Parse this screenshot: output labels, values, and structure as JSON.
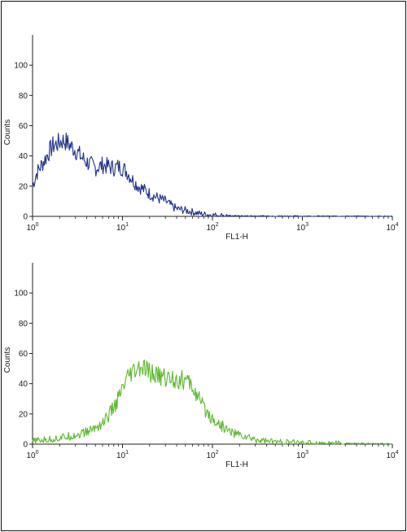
{
  "chart_data": [
    {
      "type": "line",
      "title": "",
      "xlabel": "FL1-H",
      "ylabel": "Counts",
      "x_scale": "log",
      "xlim": [
        1,
        10000
      ],
      "ylim": [
        0,
        120
      ],
      "x_ticks": [
        1,
        10,
        100,
        1000,
        10000
      ],
      "x_tick_labels": [
        {
          "base": "10",
          "exp": "0"
        },
        {
          "base": "10",
          "exp": "1"
        },
        {
          "base": "10",
          "exp": "2"
        },
        {
          "base": "10",
          "exp": "3"
        },
        {
          "base": "10",
          "exp": "4"
        }
      ],
      "y_ticks": [
        0,
        20,
        40,
        60,
        80,
        100
      ],
      "y_tick_labels": [
        "0",
        "20",
        "40",
        "60",
        "80",
        "100"
      ],
      "grid": false,
      "color": "#1e2f8a",
      "series": [
        {
          "x": [
            1.0,
            1.1,
            1.2,
            1.35,
            1.5,
            1.7,
            1.9,
            2.1,
            2.3,
            2.6,
            3.0,
            3.5,
            4.0,
            4.5,
            5.0,
            5.5,
            6.0,
            7.0,
            8.0,
            9.0,
            10.0,
            11.0,
            12.0,
            13.0,
            15.0,
            18.0,
            20.0,
            25.0,
            30.0,
            35.0,
            40.0,
            50.0,
            60.0,
            70.0,
            80.0,
            100.0,
            150.0,
            200.0,
            500.0,
            1000.0,
            10000.0
          ],
          "y": [
            20,
            28,
            32,
            37,
            42,
            47,
            48,
            50,
            50,
            47,
            44,
            39,
            36,
            34,
            32,
            33,
            34,
            33,
            32,
            33,
            32,
            30,
            27,
            24,
            20,
            17,
            15,
            12,
            10,
            7,
            5,
            4,
            3,
            2,
            1.5,
            1,
            0.5,
            0.3,
            0.2,
            0.1,
            0
          ]
        }
      ]
    },
    {
      "type": "line",
      "title": "",
      "xlabel": "FL1-H",
      "ylabel": "Counts",
      "x_scale": "log",
      "xlim": [
        1,
        10000
      ],
      "ylim": [
        0,
        120
      ],
      "x_ticks": [
        1,
        10,
        100,
        1000,
        10000
      ],
      "x_tick_labels": [
        {
          "base": "10",
          "exp": "0"
        },
        {
          "base": "10",
          "exp": "1"
        },
        {
          "base": "10",
          "exp": "2"
        },
        {
          "base": "10",
          "exp": "3"
        },
        {
          "base": "10",
          "exp": "4"
        }
      ],
      "y_ticks": [
        0,
        20,
        40,
        60,
        80,
        100
      ],
      "y_tick_labels": [
        "0",
        "20",
        "40",
        "60",
        "80",
        "100"
      ],
      "grid": false,
      "color": "#5cb82e",
      "series": [
        {
          "x": [
            1.0,
            1.5,
            2.0,
            3.0,
            4.0,
            5.0,
            6.0,
            7.0,
            8.0,
            9.0,
            10.0,
            11.0,
            12.0,
            14.0,
            16.0,
            18.0,
            20.0,
            25.0,
            30.0,
            40.0,
            50.0,
            60.0,
            70.0,
            80.0,
            100.0,
            120.0,
            150.0,
            200.0,
            300.0,
            500.0,
            1000.0,
            3000.0,
            10000.0
          ],
          "y": [
            2,
            3,
            4,
            6,
            8,
            11,
            14,
            19,
            24,
            30,
            36,
            41,
            45,
            48,
            50,
            49,
            47,
            45,
            44,
            43,
            42,
            38,
            30,
            24,
            17,
            13,
            9,
            6,
            3,
            1.5,
            1,
            0.5,
            0.3
          ]
        }
      ]
    }
  ]
}
